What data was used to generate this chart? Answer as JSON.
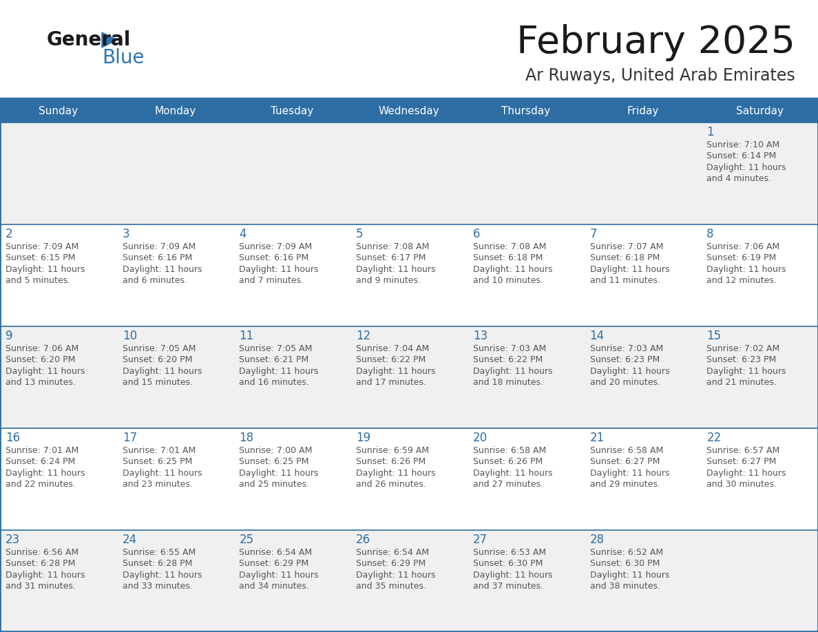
{
  "title": "February 2025",
  "subtitle": "Ar Ruways, United Arab Emirates",
  "days_of_week": [
    "Sunday",
    "Monday",
    "Tuesday",
    "Wednesday",
    "Thursday",
    "Friday",
    "Saturday"
  ],
  "header_bg": "#2E6DA4",
  "header_text": "#FFFFFF",
  "cell_bg_white": "#FFFFFF",
  "cell_bg_gray": "#F0F0F0",
  "border_color": "#2E6DA4",
  "day_num_color": "#2E6DA4",
  "info_color": "#555555",
  "title_color": "#1a1a1a",
  "subtitle_color": "#333333",
  "logo_general_color": "#1a1a1a",
  "logo_blue_color": "#2E75B6",
  "row_backgrounds": [
    "#F0F0F0",
    "#FFFFFF",
    "#F0F0F0",
    "#FFFFFF",
    "#F0F0F0"
  ],
  "calendar_data": [
    [
      null,
      null,
      null,
      null,
      null,
      null,
      {
        "day": 1,
        "sunrise": "7:10 AM",
        "sunset": "6:14 PM",
        "daylight": "11 hours\nand 4 minutes."
      }
    ],
    [
      {
        "day": 2,
        "sunrise": "7:09 AM",
        "sunset": "6:15 PM",
        "daylight": "11 hours\nand 5 minutes."
      },
      {
        "day": 3,
        "sunrise": "7:09 AM",
        "sunset": "6:16 PM",
        "daylight": "11 hours\nand 6 minutes."
      },
      {
        "day": 4,
        "sunrise": "7:09 AM",
        "sunset": "6:16 PM",
        "daylight": "11 hours\nand 7 minutes."
      },
      {
        "day": 5,
        "sunrise": "7:08 AM",
        "sunset": "6:17 PM",
        "daylight": "11 hours\nand 9 minutes."
      },
      {
        "day": 6,
        "sunrise": "7:08 AM",
        "sunset": "6:18 PM",
        "daylight": "11 hours\nand 10 minutes."
      },
      {
        "day": 7,
        "sunrise": "7:07 AM",
        "sunset": "6:18 PM",
        "daylight": "11 hours\nand 11 minutes."
      },
      {
        "day": 8,
        "sunrise": "7:06 AM",
        "sunset": "6:19 PM",
        "daylight": "11 hours\nand 12 minutes."
      }
    ],
    [
      {
        "day": 9,
        "sunrise": "7:06 AM",
        "sunset": "6:20 PM",
        "daylight": "11 hours\nand 13 minutes."
      },
      {
        "day": 10,
        "sunrise": "7:05 AM",
        "sunset": "6:20 PM",
        "daylight": "11 hours\nand 15 minutes."
      },
      {
        "day": 11,
        "sunrise": "7:05 AM",
        "sunset": "6:21 PM",
        "daylight": "11 hours\nand 16 minutes."
      },
      {
        "day": 12,
        "sunrise": "7:04 AM",
        "sunset": "6:22 PM",
        "daylight": "11 hours\nand 17 minutes."
      },
      {
        "day": 13,
        "sunrise": "7:03 AM",
        "sunset": "6:22 PM",
        "daylight": "11 hours\nand 18 minutes."
      },
      {
        "day": 14,
        "sunrise": "7:03 AM",
        "sunset": "6:23 PM",
        "daylight": "11 hours\nand 20 minutes."
      },
      {
        "day": 15,
        "sunrise": "7:02 AM",
        "sunset": "6:23 PM",
        "daylight": "11 hours\nand 21 minutes."
      }
    ],
    [
      {
        "day": 16,
        "sunrise": "7:01 AM",
        "sunset": "6:24 PM",
        "daylight": "11 hours\nand 22 minutes."
      },
      {
        "day": 17,
        "sunrise": "7:01 AM",
        "sunset": "6:25 PM",
        "daylight": "11 hours\nand 23 minutes."
      },
      {
        "day": 18,
        "sunrise": "7:00 AM",
        "sunset": "6:25 PM",
        "daylight": "11 hours\nand 25 minutes."
      },
      {
        "day": 19,
        "sunrise": "6:59 AM",
        "sunset": "6:26 PM",
        "daylight": "11 hours\nand 26 minutes."
      },
      {
        "day": 20,
        "sunrise": "6:58 AM",
        "sunset": "6:26 PM",
        "daylight": "11 hours\nand 27 minutes."
      },
      {
        "day": 21,
        "sunrise": "6:58 AM",
        "sunset": "6:27 PM",
        "daylight": "11 hours\nand 29 minutes."
      },
      {
        "day": 22,
        "sunrise": "6:57 AM",
        "sunset": "6:27 PM",
        "daylight": "11 hours\nand 30 minutes."
      }
    ],
    [
      {
        "day": 23,
        "sunrise": "6:56 AM",
        "sunset": "6:28 PM",
        "daylight": "11 hours\nand 31 minutes."
      },
      {
        "day": 24,
        "sunrise": "6:55 AM",
        "sunset": "6:28 PM",
        "daylight": "11 hours\nand 33 minutes."
      },
      {
        "day": 25,
        "sunrise": "6:54 AM",
        "sunset": "6:29 PM",
        "daylight": "11 hours\nand 34 minutes."
      },
      {
        "day": 26,
        "sunrise": "6:54 AM",
        "sunset": "6:29 PM",
        "daylight": "11 hours\nand 35 minutes."
      },
      {
        "day": 27,
        "sunrise": "6:53 AM",
        "sunset": "6:30 PM",
        "daylight": "11 hours\nand 37 minutes."
      },
      {
        "day": 28,
        "sunrise": "6:52 AM",
        "sunset": "6:30 PM",
        "daylight": "11 hours\nand 38 minutes."
      },
      null
    ]
  ]
}
